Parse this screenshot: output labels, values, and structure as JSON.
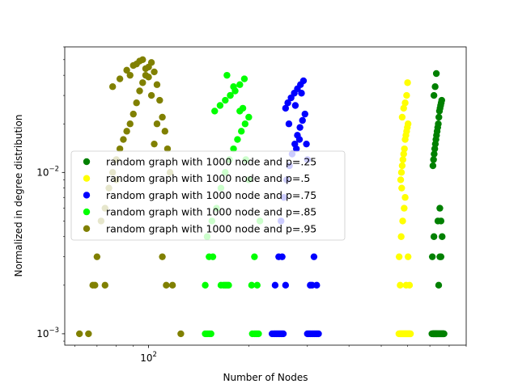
{
  "chart_data": {
    "type": "scatter",
    "xlabel": "Number of Nodes",
    "ylabel": "Normalized in degree distribution",
    "xscale": "log",
    "yscale": "log",
    "xlim": [
      56,
      900
    ],
    "ylim": [
      0.00085,
      0.06
    ],
    "x_ticks": [
      {
        "value": 100,
        "label": "10^2",
        "base": "10",
        "exp": "2"
      }
    ],
    "y_ticks": [
      {
        "value": 0.001,
        "label": "10^-3",
        "base": "10",
        "exp": "−3"
      },
      {
        "value": 0.01,
        "label": "10^-2",
        "base": "10",
        "exp": "−2"
      }
    ],
    "grid": false,
    "legend_position": "center-left",
    "series": [
      {
        "name": "random graph with 1000 node and p=.25",
        "color": "#008000",
        "x": [
          710,
          714,
          716,
          717,
          718,
          720,
          722,
          723,
          725,
          726,
          728,
          730,
          731,
          732,
          733,
          735,
          736,
          738,
          740,
          742,
          744,
          746,
          748,
          750,
          752,
          754,
          756,
          758,
          760,
          762,
          764,
          766,
          768,
          770,
          772,
          715,
          718,
          721,
          724,
          727,
          730,
          733,
          736,
          739,
          742,
          745,
          748,
          751,
          754,
          757,
          760,
          720,
          726,
          732,
          744,
          750,
          756,
          712,
          720,
          740,
          750,
          756,
          762
        ],
        "y": [
          0.001,
          0.001,
          0.001,
          0.001,
          0.001,
          0.001,
          0.001,
          0.001,
          0.001,
          0.001,
          0.001,
          0.001,
          0.001,
          0.001,
          0.001,
          0.001,
          0.001,
          0.001,
          0.001,
          0.001,
          0.001,
          0.001,
          0.001,
          0.001,
          0.001,
          0.001,
          0.001,
          0.001,
          0.001,
          0.001,
          0.001,
          0.001,
          0.001,
          0.001,
          0.001,
          0.011,
          0.012,
          0.013,
          0.014,
          0.015,
          0.016,
          0.017,
          0.018,
          0.019,
          0.02,
          0.022,
          0.024,
          0.025,
          0.026,
          0.027,
          0.028,
          0.03,
          0.034,
          0.041,
          0.002,
          0.003,
          0.003,
          0.003,
          0.004,
          0.005,
          0.006,
          0.005,
          0.004
        ]
      },
      {
        "name": "random graph with 1000 node and p=.5",
        "color": "#ffff00",
        "x": [
          565,
          568,
          570,
          572,
          574,
          576,
          578,
          580,
          582,
          584,
          586,
          588,
          590,
          592,
          594,
          596,
          598,
          600,
          602,
          604,
          606,
          608,
          610,
          612,
          572,
          575,
          578,
          581,
          584,
          587,
          590,
          593,
          596,
          599,
          602,
          578,
          584,
          590,
          596,
          600,
          566,
          570,
          574,
          580,
          586,
          594,
          602,
          608,
          576,
          590
        ],
        "y": [
          0.001,
          0.001,
          0.001,
          0.001,
          0.001,
          0.001,
          0.001,
          0.001,
          0.001,
          0.001,
          0.001,
          0.001,
          0.001,
          0.001,
          0.001,
          0.001,
          0.001,
          0.001,
          0.001,
          0.001,
          0.001,
          0.001,
          0.001,
          0.001,
          0.009,
          0.01,
          0.011,
          0.012,
          0.013,
          0.014,
          0.016,
          0.017,
          0.018,
          0.019,
          0.02,
          0.022,
          0.025,
          0.027,
          0.03,
          0.036,
          0.003,
          0.002,
          0.004,
          0.005,
          0.006,
          0.002,
          0.003,
          0.002,
          0.008,
          0.007
        ]
      },
      {
        "name": "random graph with 1000 node and p=.75",
        "color": "#0000ff",
        "x": [
          235,
          238,
          240,
          242,
          244,
          246,
          248,
          250,
          252,
          254,
          300,
          303,
          306,
          309,
          312,
          315,
          318,
          321,
          324,
          250,
          255,
          260,
          265,
          270,
          275,
          280,
          285,
          290,
          295,
          258,
          262,
          268,
          274,
          280,
          286,
          292,
          298,
          264,
          276,
          288,
          300,
          240,
          246,
          252,
          258,
          306,
          310,
          314,
          320,
          278,
          284
        ],
        "y": [
          0.001,
          0.001,
          0.001,
          0.001,
          0.001,
          0.001,
          0.001,
          0.001,
          0.001,
          0.001,
          0.001,
          0.001,
          0.001,
          0.001,
          0.001,
          0.001,
          0.001,
          0.001,
          0.001,
          0.005,
          0.007,
          0.009,
          0.011,
          0.013,
          0.015,
          0.017,
          0.019,
          0.021,
          0.023,
          0.025,
          0.027,
          0.029,
          0.031,
          0.033,
          0.035,
          0.037,
          0.015,
          0.02,
          0.026,
          0.031,
          0.012,
          0.002,
          0.003,
          0.003,
          0.002,
          0.002,
          0.002,
          0.003,
          0.002,
          0.014,
          0.016
        ]
      },
      {
        "name": "random graph with 1000 node and p=.85",
        "color": "#00ff00",
        "x": [
          148,
          150,
          152,
          154,
          165,
          168,
          170,
          172,
          174,
          205,
          208,
          210,
          212,
          214,
          150,
          155,
          160,
          165,
          170,
          175,
          180,
          185,
          190,
          195,
          200,
          158,
          164,
          170,
          176,
          182,
          188,
          194,
          200,
          172,
          180,
          188,
          196,
          148,
          152,
          156,
          204,
          208,
          212,
          216,
          176,
          192
        ],
        "y": [
          0.001,
          0.001,
          0.001,
          0.001,
          0.002,
          0.002,
          0.002,
          0.002,
          0.002,
          0.001,
          0.001,
          0.001,
          0.001,
          0.001,
          0.004,
          0.005,
          0.006,
          0.008,
          0.01,
          0.012,
          0.014,
          0.016,
          0.018,
          0.02,
          0.022,
          0.024,
          0.026,
          0.028,
          0.03,
          0.032,
          0.035,
          0.038,
          0.009,
          0.04,
          0.034,
          0.024,
          0.012,
          0.002,
          0.003,
          0.003,
          0.002,
          0.003,
          0.002,
          0.005,
          0.03,
          0.025
        ]
      },
      {
        "name": "random graph with 1000 node and p=.95",
        "color": "#808000",
        "x": [
          62,
          66,
          68,
          69,
          70,
          72,
          74,
          76,
          78,
          80,
          82,
          84,
          86,
          88,
          90,
          92,
          94,
          96,
          98,
          100,
          102,
          104,
          106,
          108,
          110,
          112,
          114,
          116,
          78,
          82,
          86,
          90,
          94,
          98,
          102,
          106,
          110,
          113,
          118,
          125,
          88,
          92,
          96,
          100,
          104,
          74,
          80
        ],
        "y": [
          0.001,
          0.001,
          0.002,
          0.002,
          0.003,
          0.005,
          0.006,
          0.008,
          0.01,
          0.012,
          0.014,
          0.016,
          0.018,
          0.02,
          0.023,
          0.027,
          0.032,
          0.036,
          0.04,
          0.045,
          0.048,
          0.042,
          0.035,
          0.028,
          0.022,
          0.018,
          0.014,
          0.01,
          0.034,
          0.038,
          0.043,
          0.046,
          0.049,
          0.044,
          0.03,
          0.02,
          0.003,
          0.002,
          0.002,
          0.001,
          0.04,
          0.047,
          0.05,
          0.039,
          0.015,
          0.002,
          0.009
        ]
      }
    ]
  }
}
